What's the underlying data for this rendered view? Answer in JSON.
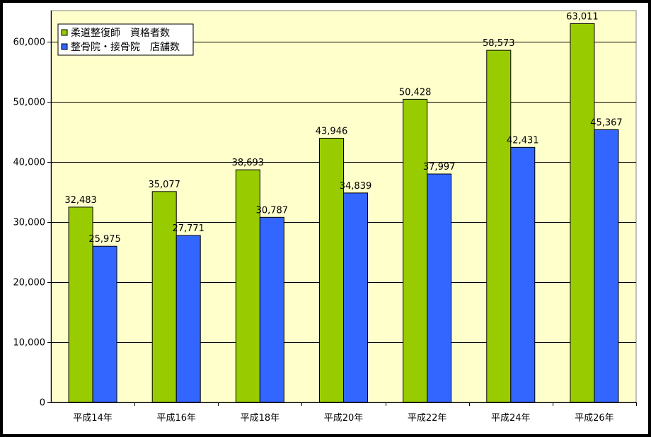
{
  "chart_data": {
    "type": "bar",
    "categories": [
      "平成14年",
      "平成16年",
      "平成18年",
      "平成20年",
      "平成22年",
      "平成24年",
      "平成26年"
    ],
    "series": [
      {
        "name": "柔道整復師　資格者数",
        "color": "#99CC00",
        "values": [
          32483,
          35077,
          38693,
          43946,
          50428,
          58573,
          63011
        ],
        "labels": [
          "32,483",
          "35,077",
          "38,693",
          "43,946",
          "50,428",
          "58,573",
          "63,011"
        ]
      },
      {
        "name": "整骨院・接骨院　店舗数",
        "color": "#3366FF",
        "values": [
          25975,
          27771,
          30787,
          34839,
          37997,
          42431,
          45367
        ],
        "labels": [
          "25,975",
          "27,771",
          "30,787",
          "34,839",
          "37,997",
          "42,431",
          "45,367"
        ]
      }
    ],
    "ylim": [
      0,
      60000
    ],
    "yticks": [
      0,
      10000,
      20000,
      30000,
      40000,
      50000,
      60000
    ],
    "ytick_labels": [
      "0",
      "10,000",
      "20,000",
      "30,000",
      "40,000",
      "50,000",
      "60,000"
    ],
    "grid": true,
    "legend": "top-left",
    "plot_background": "#FFFFCC"
  }
}
